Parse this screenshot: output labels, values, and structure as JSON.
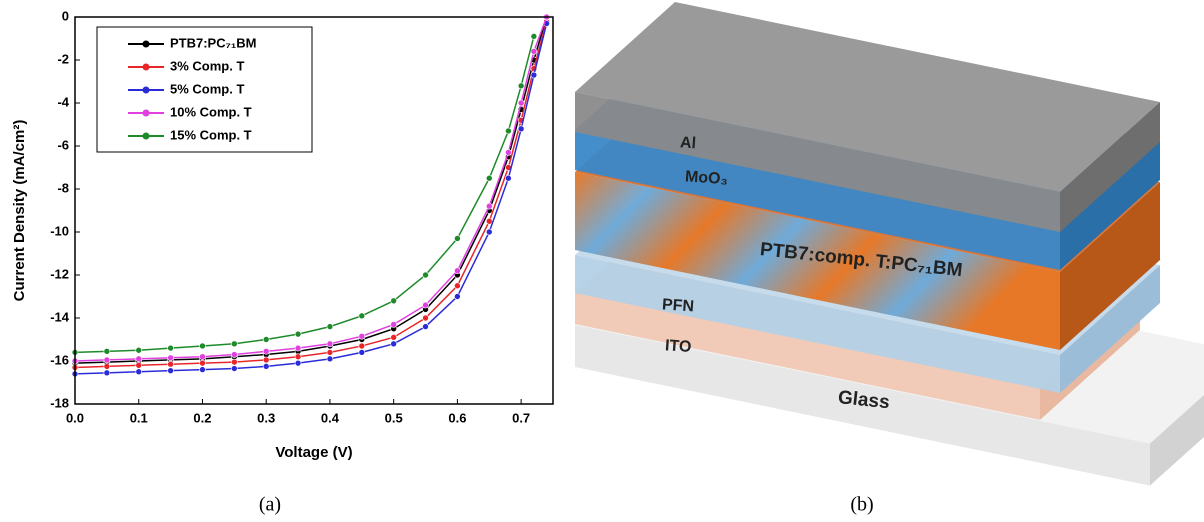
{
  "chart_data": {
    "type": "line",
    "xlabel": "Voltage (V)",
    "ylabel": "Current Density (mA/cm²)",
    "x": [
      0,
      0.05,
      0.1,
      0.15,
      0.2,
      0.25,
      0.3,
      0.35,
      0.4,
      0.45,
      0.5,
      0.55,
      0.6,
      0.65,
      0.68,
      0.7,
      0.72,
      0.74
    ],
    "series": [
      {
        "name": "PTB7:PC₇₁BM",
        "color": "#000000",
        "values": [
          -16.1,
          -16.05,
          -16.0,
          -15.95,
          -15.9,
          -15.8,
          -15.7,
          -15.55,
          -15.3,
          -15.0,
          -14.5,
          -13.6,
          -12.0,
          -9.0,
          -6.5,
          -4.3,
          -2.0,
          0.0
        ]
      },
      {
        "name": "3% Comp. T",
        "color": "#e8262a",
        "values": [
          -16.3,
          -16.25,
          -16.2,
          -16.15,
          -16.1,
          -16.05,
          -15.95,
          -15.8,
          -15.6,
          -15.3,
          -14.9,
          -14.0,
          -12.5,
          -9.5,
          -7.0,
          -4.8,
          -2.4,
          -0.2
        ]
      },
      {
        "name": "5% Comp. T",
        "color": "#2b2bd8",
        "values": [
          -16.6,
          -16.55,
          -16.5,
          -16.45,
          -16.4,
          -16.35,
          -16.25,
          -16.1,
          -15.9,
          -15.6,
          -15.2,
          -14.4,
          -13.0,
          -10.0,
          -7.5,
          -5.2,
          -2.7,
          -0.3
        ]
      },
      {
        "name": "10% Comp. T",
        "color": "#e040e0",
        "values": [
          -16.0,
          -15.95,
          -15.9,
          -15.85,
          -15.8,
          -15.7,
          -15.55,
          -15.4,
          -15.2,
          -14.85,
          -14.3,
          -13.4,
          -11.8,
          -8.8,
          -6.3,
          -4.0,
          -1.6,
          0.0
        ]
      },
      {
        "name": "15% Comp. T",
        "color": "#1e8a2a",
        "values": [
          -15.6,
          -15.55,
          -15.5,
          -15.4,
          -15.3,
          -15.2,
          -15.0,
          -14.75,
          -14.4,
          -13.9,
          -13.2,
          -12.0,
          -10.3,
          -7.5,
          -5.3,
          -3.2,
          -0.9,
          null
        ]
      }
    ],
    "xlim": [
      0,
      0.75
    ],
    "ylim": [
      -18,
      0
    ],
    "xticks": [
      {
        "value": 0,
        "label": "0.0"
      },
      0.1,
      0.2,
      0.3,
      0.4,
      0.5,
      0.6,
      0.7
    ],
    "yticks": [
      0,
      -2,
      -4,
      -6,
      -8,
      -10,
      -12,
      -14,
      -16,
      -18
    ],
    "legend": "upper left"
  },
  "diagram": {
    "layers": [
      "Al",
      "MoO₃",
      "PTB7:comp. T:PC₇₁BM",
      "PFN",
      "ITO",
      "Glass"
    ]
  },
  "captions": [
    "(a)",
    "(b)"
  ]
}
